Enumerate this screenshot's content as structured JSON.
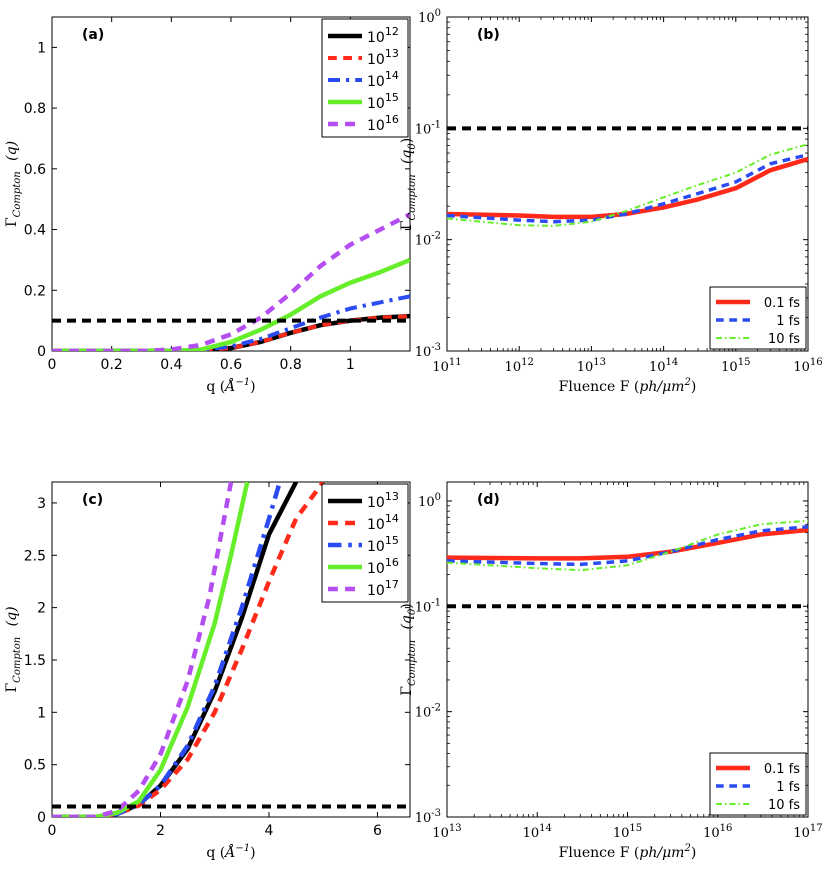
{
  "figure": {
    "background": "#ffffff"
  },
  "chart_data": [
    {
      "id": "a",
      "panel_label": "(a)",
      "type": "line",
      "yscale": "linear",
      "xlabel": "q (Å⁻¹)",
      "ylabel": "Γ_Compton (q)",
      "ylabel_main": "Γ",
      "ylabel_sub": "Compton",
      "ylabel_arg": "(q)",
      "xlabel_main": "q (",
      "xlabel_unit": "Å",
      "xlabel_sup": "−1",
      "xlabel_close": ")",
      "xlim": [
        0,
        1.2
      ],
      "ylim": [
        0,
        1.1
      ],
      "xticks": [
        0,
        0.2,
        0.4,
        0.6,
        0.8,
        1
      ],
      "xtick_labels": [
        "0",
        "0.2",
        "0.4",
        "0.6",
        "0.8",
        "1"
      ],
      "yticks": [
        0,
        0.2,
        0.4,
        0.6,
        0.8,
        1
      ],
      "ytick_labels": [
        "0",
        "0.2",
        "0.4",
        "0.6",
        "0.8",
        "1"
      ],
      "legend_position": "top-right",
      "reference_line": {
        "y": 0.1,
        "color": "#000000",
        "style": "dashed"
      },
      "series": [
        {
          "name": "10^12",
          "base": "10",
          "exp": "12",
          "color": "#000000",
          "style": "solid",
          "width": 4.5,
          "x": [
            0,
            0.4,
            0.5,
            0.6,
            0.7,
            0.8,
            0.9,
            1.0,
            1.1,
            1.2
          ],
          "y": [
            0,
            0,
            0.002,
            0.01,
            0.03,
            0.06,
            0.085,
            0.1,
            0.11,
            0.115
          ]
        },
        {
          "name": "10^13",
          "base": "10",
          "exp": "13",
          "color": "#ff2a1a",
          "style": "dashed",
          "width": 4,
          "x": [
            0,
            0.4,
            0.5,
            0.6,
            0.7,
            0.8,
            0.9,
            1.0,
            1.1,
            1.2
          ],
          "y": [
            0,
            0,
            0.002,
            0.01,
            0.03,
            0.06,
            0.085,
            0.1,
            0.11,
            0.115
          ]
        },
        {
          "name": "10^14",
          "base": "10",
          "exp": "14",
          "color": "#2a4bf2",
          "style": "dashdot",
          "width": 4,
          "x": [
            0,
            0.4,
            0.5,
            0.6,
            0.7,
            0.8,
            0.9,
            1.0,
            1.1,
            1.2
          ],
          "y": [
            0,
            0,
            0.003,
            0.015,
            0.04,
            0.075,
            0.11,
            0.14,
            0.16,
            0.18
          ]
        },
        {
          "name": "10^15",
          "base": "10",
          "exp": "15",
          "color": "#66ee2a",
          "style": "solid",
          "width": 4.5,
          "x": [
            0,
            0.4,
            0.5,
            0.6,
            0.7,
            0.8,
            0.9,
            1.0,
            1.1,
            1.2
          ],
          "y": [
            0,
            0,
            0.005,
            0.03,
            0.07,
            0.12,
            0.18,
            0.225,
            0.26,
            0.3
          ]
        },
        {
          "name": "10^16",
          "base": "10",
          "exp": "16",
          "color": "#b44ef0",
          "style": "dashed",
          "width": 4.5,
          "x": [
            0,
            0.3,
            0.4,
            0.5,
            0.6,
            0.7,
            0.8,
            0.9,
            1.0,
            1.1,
            1.2
          ],
          "y": [
            0,
            0,
            0.005,
            0.02,
            0.055,
            0.11,
            0.19,
            0.28,
            0.35,
            0.4,
            0.45
          ]
        }
      ]
    },
    {
      "id": "b",
      "panel_label": "(b)",
      "type": "line",
      "yscale": "log",
      "xscale": "log",
      "xlabel": "Fluence F (ph/μm²)",
      "ylabel": "Γ_Compton (q0)",
      "ylabel_main": "Γ",
      "ylabel_sub": "Compton",
      "ylabel_arg": "(q",
      "ylabel_arg_sub": "0",
      "ylabel_arg_close": ")",
      "xlabel_main": "Fluence F (",
      "xlabel_unit": "ph/μm",
      "xlabel_sup": "2",
      "xlabel_close": ")",
      "xlim": [
        11,
        16
      ],
      "ylim": [
        -3,
        0
      ],
      "xticks": [
        11,
        12,
        13,
        14,
        15,
        16
      ],
      "xtick_labels": [
        {
          "base": "10",
          "exp": "11"
        },
        {
          "base": "10",
          "exp": "12"
        },
        {
          "base": "10",
          "exp": "13"
        },
        {
          "base": "10",
          "exp": "14"
        },
        {
          "base": "10",
          "exp": "15"
        },
        {
          "base": "10",
          "exp": "16"
        }
      ],
      "yticks": [
        -3,
        -2,
        -1,
        0
      ],
      "ytick_labels": [
        {
          "base": "10",
          "exp": "-3"
        },
        {
          "base": "10",
          "exp": "-2"
        },
        {
          "base": "10",
          "exp": "-1"
        },
        {
          "base": "10",
          "exp": "0"
        }
      ],
      "legend_position": "bottom-right",
      "reference_line": {
        "y": 0.1,
        "color": "#000000",
        "style": "dashed"
      },
      "series": [
        {
          "name": "0.1 fs",
          "color": "#ff2a1a",
          "style": "solid",
          "width": 4.5,
          "x": [
            100000000000.0,
            1000000000000.0,
            3000000000000.0,
            10000000000000.0,
            30000000000000.0,
            100000000000000.0,
            300000000000000.0,
            1000000000000000.0,
            3000000000000000.0,
            1e+16
          ],
          "y": [
            0.017,
            0.0165,
            0.016,
            0.016,
            0.017,
            0.0195,
            0.023,
            0.029,
            0.042,
            0.053
          ]
        },
        {
          "name": "1 fs",
          "color": "#2a4bf2",
          "style": "dashed",
          "width": 3.5,
          "x": [
            100000000000.0,
            1000000000000.0,
            3000000000000.0,
            10000000000000.0,
            30000000000000.0,
            100000000000000.0,
            300000000000000.0,
            1000000000000000.0,
            3000000000000000.0,
            1e+16
          ],
          "y": [
            0.0165,
            0.015,
            0.0145,
            0.015,
            0.017,
            0.021,
            0.026,
            0.033,
            0.048,
            0.058
          ]
        },
        {
          "name": "10 fs",
          "color": "#66ee2a",
          "style": "dashdot",
          "width": 2,
          "x": [
            100000000000.0,
            1000000000000.0,
            3000000000000.0,
            10000000000000.0,
            30000000000000.0,
            100000000000000.0,
            300000000000000.0,
            1000000000000000.0,
            3000000000000000.0,
            1e+16
          ],
          "y": [
            0.0155,
            0.0135,
            0.0133,
            0.0145,
            0.018,
            0.024,
            0.031,
            0.04,
            0.058,
            0.072
          ]
        }
      ]
    },
    {
      "id": "c",
      "panel_label": "(c)",
      "type": "line",
      "yscale": "linear",
      "xlabel": "q (Å⁻¹)",
      "ylabel": "Γ_Compton (q)",
      "ylabel_main": "Γ",
      "ylabel_sub": "Compton",
      "ylabel_arg": "(q)",
      "xlabel_main": "q (",
      "xlabel_unit": "Å",
      "xlabel_sup": "−1",
      "xlabel_close": ")",
      "xlim": [
        0,
        6.6
      ],
      "ylim": [
        0,
        3.2
      ],
      "xticks": [
        0,
        2,
        4,
        6
      ],
      "xtick_labels": [
        "0",
        "2",
        "4",
        "6"
      ],
      "yticks": [
        0,
        0.5,
        1,
        1.5,
        2,
        2.5,
        3
      ],
      "ytick_labels": [
        "0",
        "0.5",
        "1",
        "1.5",
        "2",
        "2.5",
        "3"
      ],
      "legend_position": "top-right",
      "reference_line": {
        "y": 0.1,
        "color": "#000000",
        "style": "dashed"
      },
      "series": [
        {
          "name": "10^13",
          "base": "10",
          "exp": "13",
          "color": "#000000",
          "style": "solid",
          "width": 4.5,
          "x": [
            0,
            0.8,
            1.2,
            1.6,
            2.0,
            2.5,
            3.0,
            3.5,
            4.0,
            4.5
          ],
          "y": [
            0,
            0,
            0.03,
            0.12,
            0.3,
            0.65,
            1.2,
            1.9,
            2.7,
            3.2
          ]
        },
        {
          "name": "10^14",
          "base": "10",
          "exp": "14",
          "color": "#ff2a1a",
          "style": "dashed",
          "width": 4.5,
          "x": [
            0,
            0.8,
            1.2,
            1.6,
            2.0,
            2.5,
            3.0,
            3.5,
            4.0,
            4.5,
            5.0
          ],
          "y": [
            0,
            0,
            0.03,
            0.11,
            0.26,
            0.55,
            1.0,
            1.6,
            2.25,
            2.85,
            3.2
          ]
        },
        {
          "name": "10^15",
          "base": "10",
          "exp": "15",
          "color": "#2a4bf2",
          "style": "dashdot",
          "width": 4.5,
          "x": [
            0,
            0.8,
            1.2,
            1.6,
            2.0,
            2.5,
            3.0,
            3.5,
            4.0,
            4.2
          ],
          "y": [
            0,
            0,
            0.03,
            0.12,
            0.3,
            0.68,
            1.25,
            2.0,
            2.85,
            3.2
          ]
        },
        {
          "name": "10^16",
          "base": "10",
          "exp": "16",
          "color": "#66ee2a",
          "style": "solid",
          "width": 4.5,
          "x": [
            0,
            0.8,
            1.2,
            1.6,
            2.0,
            2.5,
            3.0,
            3.3,
            3.6
          ],
          "y": [
            0,
            0,
            0.04,
            0.15,
            0.45,
            1.05,
            1.85,
            2.5,
            3.2
          ]
        },
        {
          "name": "10^17",
          "base": "10",
          "exp": "17",
          "color": "#b44ef0",
          "style": "dashed",
          "width": 4.5,
          "x": [
            0,
            0.8,
            1.2,
            1.6,
            2.0,
            2.5,
            2.9,
            3.3
          ],
          "y": [
            0,
            0,
            0.06,
            0.25,
            0.6,
            1.3,
            2.1,
            3.2
          ]
        }
      ]
    },
    {
      "id": "d",
      "panel_label": "(d)",
      "type": "line",
      "yscale": "log",
      "xscale": "log",
      "xlabel": "Fluence F (ph/μm²)",
      "ylabel": "Γ_Compton (q0)",
      "ylabel_main": "Γ",
      "ylabel_sub": "Compton",
      "ylabel_arg": "(q",
      "ylabel_arg_sub": "0",
      "ylabel_arg_close": ")",
      "xlabel_main": "Fluence F (",
      "xlabel_unit": "ph/μm",
      "xlabel_sup": "2",
      "xlabel_close": ")",
      "xlim": [
        13,
        17
      ],
      "ylim": [
        -3,
        0.18
      ],
      "xticks": [
        13,
        14,
        15,
        16,
        17
      ],
      "xtick_labels": [
        {
          "base": "10",
          "exp": "13"
        },
        {
          "base": "10",
          "exp": "14"
        },
        {
          "base": "10",
          "exp": "15"
        },
        {
          "base": "10",
          "exp": "16"
        },
        {
          "base": "10",
          "exp": "17"
        }
      ],
      "yticks": [
        -3,
        -2,
        -1,
        0
      ],
      "ytick_labels": [
        {
          "base": "10",
          "exp": "-3"
        },
        {
          "base": "10",
          "exp": "-2"
        },
        {
          "base": "10",
          "exp": "-1"
        },
        {
          "base": "10",
          "exp": "0"
        }
      ],
      "legend_position": "bottom-right",
      "reference_line": {
        "y": 0.1,
        "color": "#000000",
        "style": "dashed"
      },
      "series": [
        {
          "name": "0.1 fs",
          "color": "#ff2a1a",
          "style": "solid",
          "width": 4.5,
          "x": [
            10000000000000.0,
            100000000000000.0,
            300000000000000.0,
            1000000000000000.0,
            3000000000000000.0,
            1e+16,
            3e+16,
            1e+17
          ],
          "y": [
            0.29,
            0.285,
            0.285,
            0.295,
            0.33,
            0.4,
            0.48,
            0.53
          ]
        },
        {
          "name": "1 fs",
          "color": "#2a4bf2",
          "style": "dashed",
          "width": 3.5,
          "x": [
            10000000000000.0,
            100000000000000.0,
            300000000000000.0,
            1000000000000000.0,
            3000000000000000.0,
            1e+16,
            3e+16,
            1e+17
          ],
          "y": [
            0.27,
            0.255,
            0.25,
            0.27,
            0.33,
            0.43,
            0.52,
            0.57
          ]
        },
        {
          "name": "10 fs",
          "color": "#66ee2a",
          "style": "dashdot",
          "width": 2,
          "x": [
            10000000000000.0,
            100000000000000.0,
            300000000000000.0,
            1000000000000000.0,
            3000000000000000.0,
            1e+16,
            3e+16,
            1e+17
          ],
          "y": [
            0.26,
            0.23,
            0.22,
            0.245,
            0.33,
            0.48,
            0.6,
            0.65
          ]
        }
      ]
    }
  ]
}
